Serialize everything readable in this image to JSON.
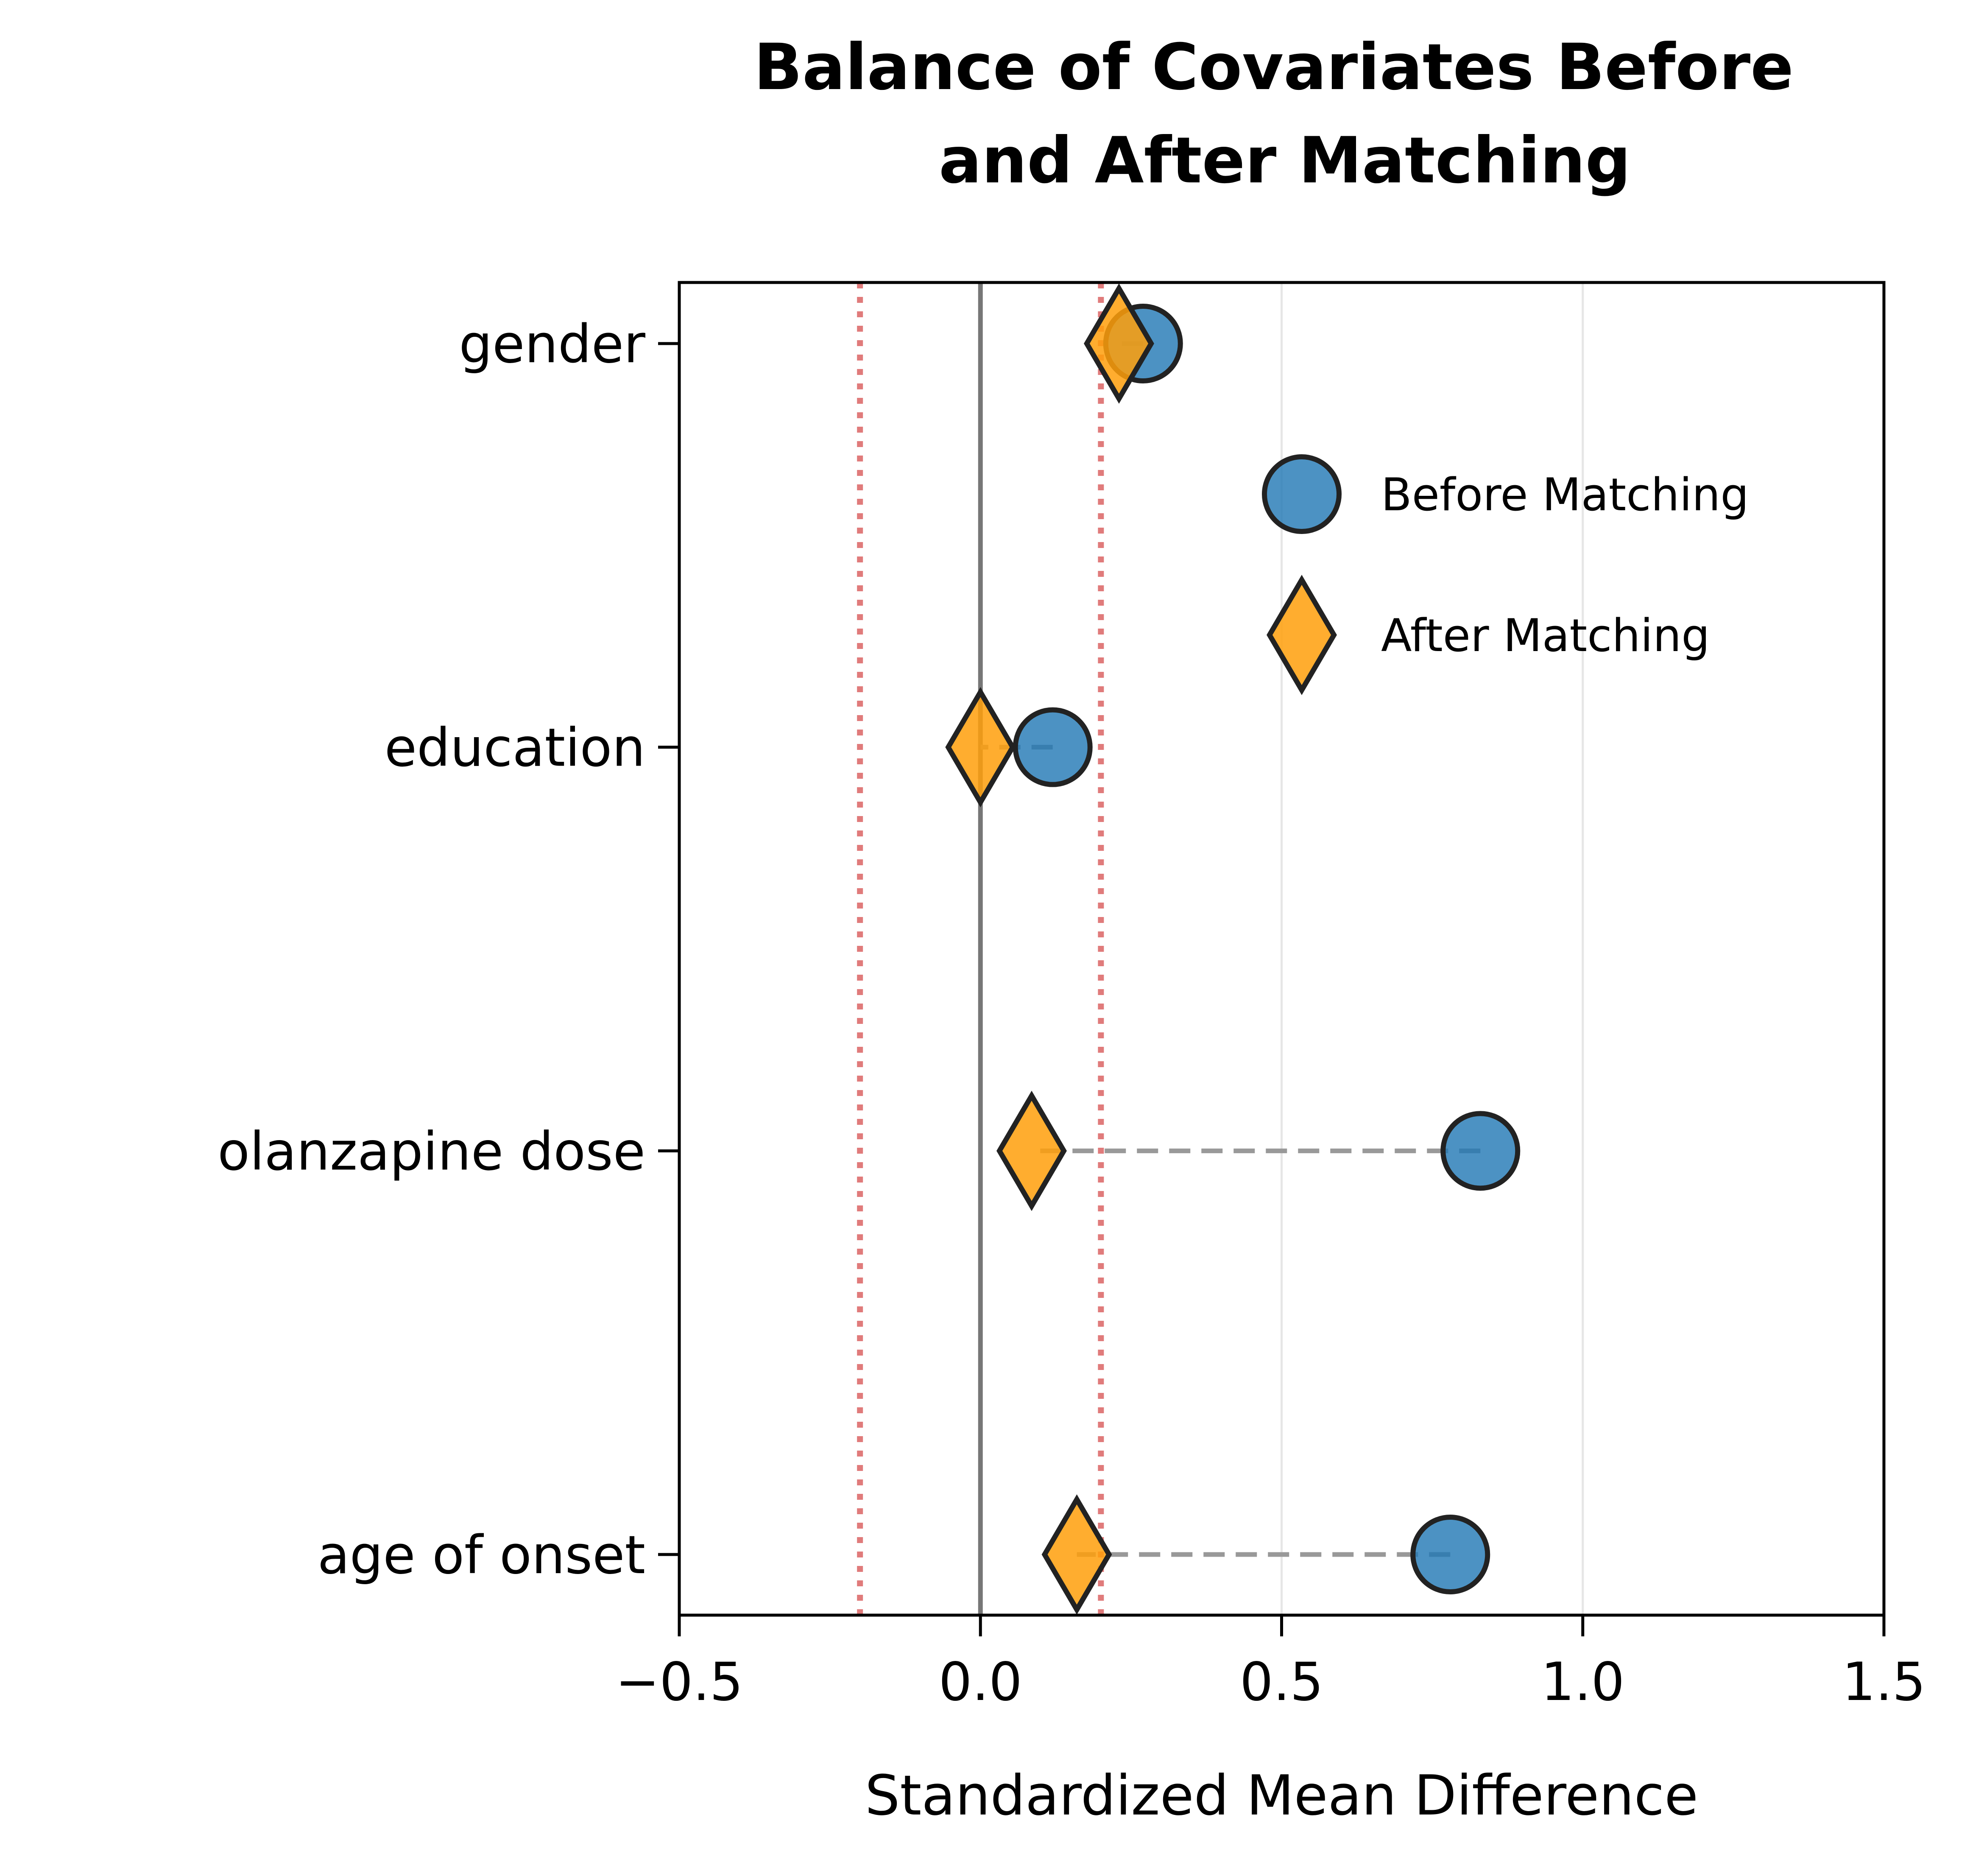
{
  "chart_data": {
    "type": "scatter",
    "title": "Balance of Covariates Before\nand After Matching",
    "xlabel": "Standardized Mean Difference",
    "ylabel": "",
    "xlim": [
      -0.5,
      1.5
    ],
    "xticks": [
      -0.5,
      0.0,
      0.5,
      1.0,
      1.5
    ],
    "xtick_labels": [
      "−0.5",
      "0.0",
      "0.5",
      "1.0",
      "1.5"
    ],
    "categories": [
      "gender",
      "education",
      "olanzapine dose",
      "age of onset"
    ],
    "series": [
      {
        "name": "Before Matching",
        "marker": "circle",
        "color": "#1f77b4",
        "values": [
          0.27,
          0.12,
          0.83,
          0.78
        ]
      },
      {
        "name": "After Matching",
        "marker": "diamond",
        "color": "#ff9f0a",
        "values": [
          0.23,
          0.0,
          0.085,
          0.16
        ]
      }
    ],
    "reference_lines": {
      "zero": 0.0,
      "thresholds": [
        -0.2,
        0.2
      ]
    },
    "grid": "vertical",
    "legend_position": "upper-right"
  }
}
